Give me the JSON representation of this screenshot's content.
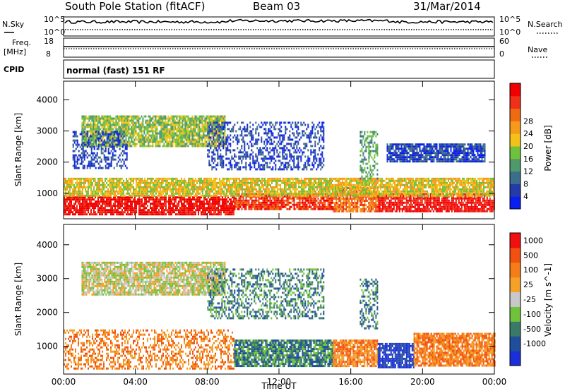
{
  "header": {
    "station": "South Pole Station (fitACF)",
    "beam": "Beam 03",
    "date": "31/Mar/2014"
  },
  "top_panels": {
    "nsky_label": "N.Sky",
    "nsearch_label": "N.Search",
    "nsky_ticks": [
      "10^5",
      "10^0"
    ],
    "nsearch_ticks": [
      "10^5",
      "10^0"
    ],
    "freq_label_line1": "Freq.",
    "freq_label_line2": "[MHz]",
    "freq_ticks": [
      "18",
      "8"
    ],
    "nave_label": "Nave",
    "nave_ticks": [
      "60",
      "0"
    ],
    "cpid_label": "CPID",
    "cpid_text": "normal (fast) 151 RF"
  },
  "chart_data": [
    {
      "type": "heatmap",
      "panel": "power",
      "title": "",
      "xlabel": "",
      "ylabel": "Slant Range [km]",
      "y_ticks": [
        1000,
        2000,
        3000,
        4000
      ],
      "ylim": [
        180,
        4600
      ],
      "x_ticks": [
        0,
        4,
        8,
        12,
        16,
        20,
        24
      ],
      "xlim": [
        0,
        24
      ],
      "colorbar": {
        "label": "Power [dB]",
        "ticks": [
          "4",
          "8",
          "12",
          "16",
          "20",
          "24",
          "28"
        ],
        "colors": [
          "#0a1ef0",
          "#233aa8",
          "#3b6e8a",
          "#4f9a6a",
          "#6fc23c",
          "#f2c21a",
          "#f59a1a",
          "#f06a12",
          "#f03018",
          "#f00000"
        ]
      },
      "echo_bands": [
        {
          "t0": 0.0,
          "t1": 9.5,
          "r0": 350,
          "r1": 900,
          "level": 9
        },
        {
          "t0": 9.5,
          "t1": 15.0,
          "r0": 500,
          "r1": 1000,
          "level": 8
        },
        {
          "t0": 15.0,
          "t1": 17.5,
          "r0": 400,
          "r1": 1200,
          "level": 7
        },
        {
          "t0": 17.5,
          "t1": 24.0,
          "r0": 400,
          "r1": 1000,
          "level": 9
        },
        {
          "t0": 0.0,
          "t1": 24.0,
          "r0": 900,
          "r1": 1500,
          "level": 5
        },
        {
          "t0": 1.0,
          "t1": 9.0,
          "r0": 2500,
          "r1": 3500,
          "level": 4
        },
        {
          "t0": 8.0,
          "t1": 14.5,
          "r0": 1800,
          "r1": 3300,
          "level": 1
        },
        {
          "t0": 0.5,
          "t1": 3.5,
          "r0": 1800,
          "r1": 3000,
          "level": 1
        },
        {
          "t0": 16.5,
          "t1": 17.5,
          "r0": 1500,
          "r1": 3000,
          "level": 3
        },
        {
          "t0": 18.0,
          "t1": 23.5,
          "r0": 2000,
          "r1": 2600,
          "level": 1
        }
      ]
    },
    {
      "type": "heatmap",
      "panel": "velocity",
      "title": "",
      "xlabel": "Time UT",
      "ylabel": "Slant Range [km]",
      "y_ticks": [
        1000,
        2000,
        3000,
        4000
      ],
      "ylim": [
        180,
        4600
      ],
      "x_ticks": [
        0,
        4,
        8,
        12,
        16,
        20,
        24
      ],
      "x_tick_labels": [
        "00:00",
        "04:00",
        "08:00",
        "12:00",
        "16:00",
        "20:00",
        "00:00"
      ],
      "xlim": [
        0,
        24
      ],
      "colorbar": {
        "label": "Velocity [m s^-1]",
        "ticks": [
          "1000",
          "500",
          "100",
          "25",
          "-25",
          "-100",
          "-500",
          "-1000"
        ],
        "colors": [
          "#1b2fd8",
          "#1f4e9c",
          "#3a7a68",
          "#6fc23c",
          "#c8c8c8",
          "#f5a028",
          "#f57d18",
          "#f05010",
          "#f01010"
        ]
      },
      "echo_bands": [
        {
          "t0": 0.0,
          "t1": 9.5,
          "r0": 350,
          "r1": 1500,
          "level": 6
        },
        {
          "t0": 9.5,
          "t1": 15.0,
          "r0": 400,
          "r1": 1200,
          "level": 2
        },
        {
          "t0": 15.0,
          "t1": 17.5,
          "r0": 400,
          "r1": 1200,
          "level": 6
        },
        {
          "t0": 17.5,
          "t1": 19.5,
          "r0": 400,
          "r1": 1100,
          "level": 0
        },
        {
          "t0": 19.5,
          "t1": 24.0,
          "r0": 400,
          "r1": 1400,
          "level": 6
        },
        {
          "t0": 1.0,
          "t1": 9.0,
          "r0": 2500,
          "r1": 3500,
          "level": 4
        },
        {
          "t0": 8.0,
          "t1": 14.5,
          "r0": 1800,
          "r1": 3300,
          "level": 2
        },
        {
          "t0": 16.5,
          "t1": 17.5,
          "r0": 1500,
          "r1": 3000,
          "level": 2
        }
      ]
    }
  ]
}
